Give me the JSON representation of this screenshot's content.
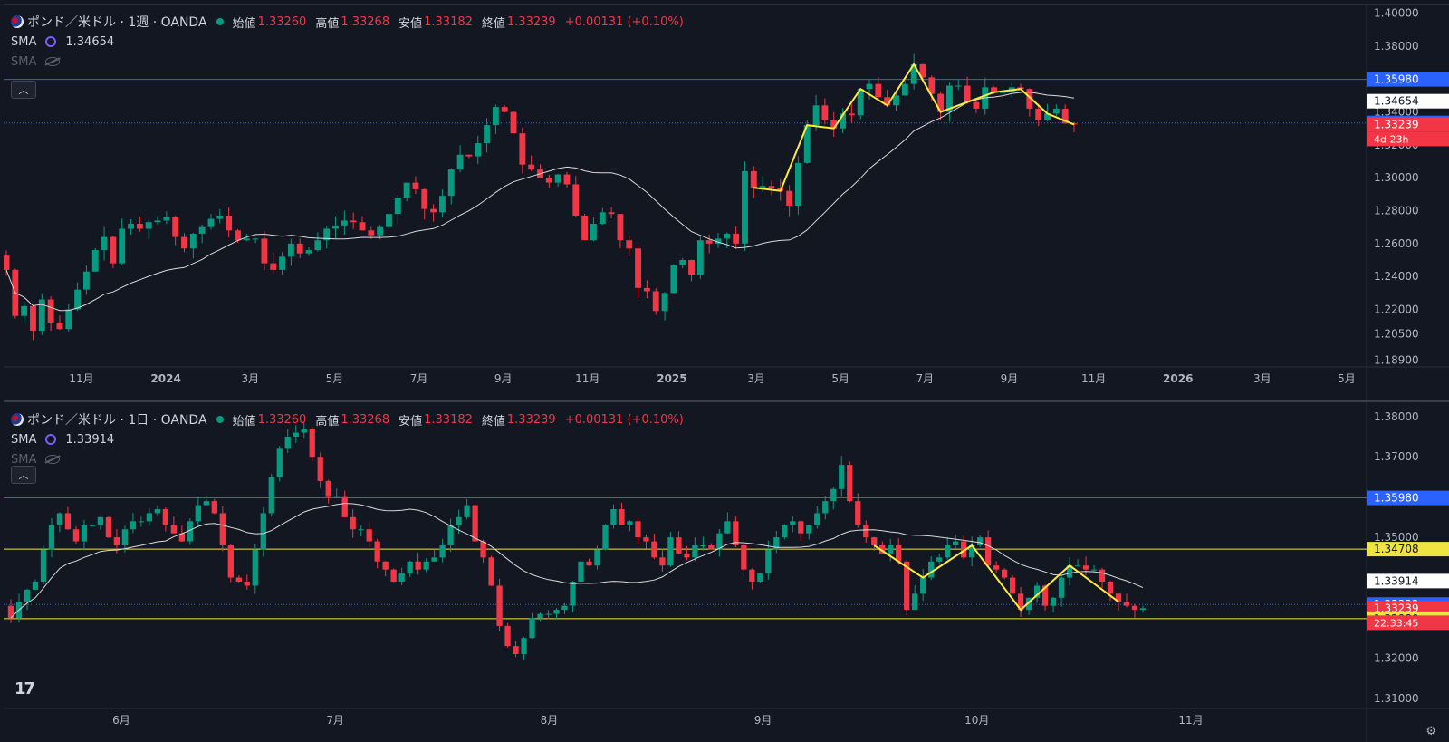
{
  "colors": {
    "up": "#089981",
    "down": "#f23645",
    "sma": "#d9d9d9",
    "zigzag": "#ffeb3b",
    "blue_line": "#2962ff",
    "yellow_line": "#f0e442",
    "bg": "#131722",
    "axis_text": "#b2b5be"
  },
  "top": {
    "title": "ポンド／米ドル · 1週 · OANDA",
    "open_label": "始値",
    "open": "1.33260",
    "high_label": "高値",
    "high": "1.33268",
    "low_label": "安値",
    "low": "1.33182",
    "close_label": "終値",
    "close": "1.33239",
    "change": "+0.00131 (+0.10%)",
    "sma1_label": "SMA",
    "sma1_value": "1.34654",
    "sma2_label": "SMA",
    "collapse_icon": "chevron-up-icon"
  },
  "bottom": {
    "title": "ポンド／米ドル · 1日 · OANDA",
    "open_label": "始値",
    "open": "1.33260",
    "high_label": "高値",
    "high": "1.33268",
    "low_label": "安値",
    "low": "1.33182",
    "close_label": "終値",
    "close": "1.33239",
    "change": "+0.00131 (+0.10%)",
    "sma1_label": "SMA",
    "sma1_value": "1.33914",
    "sma2_label": "SMA",
    "collapse_icon": "chevron-up-icon"
  },
  "chart_data": [
    {
      "type": "candlestick",
      "timeframe": "1週",
      "ylim": [
        1.185,
        1.402
      ],
      "y_ticks": [
        "1.40000",
        "1.38000",
        "1.36000",
        "1.34000",
        "1.32000",
        "1.30000",
        "1.28000",
        "1.26000",
        "1.24000",
        "1.22000",
        "1.20500",
        "1.18900"
      ],
      "x_tick_labels": [
        "11月",
        "2024",
        "3月",
        "5月",
        "7月",
        "9月",
        "11月",
        "2025",
        "3月",
        "5月",
        "7月",
        "9月",
        "11月",
        "2026",
        "3月",
        "5月"
      ],
      "price_tags": [
        {
          "value": "1.35980",
          "price": 1.3598,
          "color": "#2962ff"
        },
        {
          "value": "1.34654",
          "price": 1.34654,
          "color": "#ffffff"
        },
        {
          "value": "1.33332",
          "price": 1.33332,
          "color": "#2962ff"
        },
        {
          "value": "1.33239",
          "price": 1.33239,
          "color": "#f23645"
        }
      ],
      "countdown": "4d 23h",
      "hlines": [
        {
          "price": 1.3598,
          "style": "solid",
          "color": "#2962ff"
        },
        {
          "price": 1.33332,
          "style": "dotted",
          "color": "#2962ff"
        }
      ],
      "closes": [
        1.244,
        1.216,
        1.222,
        1.207,
        1.226,
        1.212,
        1.208,
        1.22,
        1.232,
        1.243,
        1.256,
        1.264,
        1.248,
        1.269,
        1.272,
        1.269,
        1.273,
        1.274,
        1.276,
        1.264,
        1.257,
        1.266,
        1.27,
        1.275,
        1.277,
        1.268,
        1.262,
        1.263,
        1.263,
        1.248,
        1.244,
        1.252,
        1.26,
        1.254,
        1.256,
        1.262,
        1.269,
        1.271,
        1.274,
        1.273,
        1.268,
        1.265,
        1.27,
        1.278,
        1.288,
        1.297,
        1.293,
        1.281,
        1.279,
        1.289,
        1.305,
        1.314,
        1.313,
        1.321,
        1.332,
        1.343,
        1.34,
        1.327,
        1.308,
        1.305,
        1.3,
        1.297,
        1.302,
        1.296,
        1.277,
        1.262,
        1.272,
        1.279,
        1.278,
        1.262,
        1.257,
        1.233,
        1.231,
        1.219,
        1.23,
        1.247,
        1.25,
        1.241,
        1.262,
        1.26,
        1.263,
        1.266,
        1.26,
        1.304,
        1.294,
        1.295,
        1.294,
        1.292,
        1.283,
        1.309,
        1.332,
        1.344,
        1.335,
        1.33,
        1.339,
        1.338,
        1.354,
        1.357,
        1.349,
        1.344,
        1.35,
        1.357,
        1.369,
        1.361,
        1.351,
        1.34,
        1.356,
        1.356,
        1.346,
        1.342,
        1.355,
        1.352,
        1.352,
        1.355,
        1.354,
        1.342,
        1.335,
        1.339,
        1.342,
        1.333,
        1.3324
      ]
    },
    {
      "type": "candlestick",
      "timeframe": "1日",
      "ylim": [
        1.3075,
        1.3822
      ],
      "y_ticks": [
        "1.38000",
        "1.37000",
        "1.35000",
        "1.32000",
        "1.31000"
      ],
      "x_tick_labels": [
        "6月",
        "7月",
        "8月",
        "9月",
        "10月",
        "11月"
      ],
      "price_tags": [
        {
          "value": "1.35980",
          "price": 1.3598,
          "color": "#2962ff"
        },
        {
          "value": "1.34708",
          "price": 1.34708,
          "color": "#f0e442"
        },
        {
          "value": "1.33914",
          "price": 1.33914,
          "color": "#ffffff"
        },
        {
          "value": "1.33332",
          "price": 1.33332,
          "color": "#2962ff"
        },
        {
          "value": "1.33239",
          "price": 1.33239,
          "color": "#f23645"
        },
        {
          "value": "1.32980",
          "price": 1.3298,
          "color": "#f0e442"
        }
      ],
      "countdown": "22:33:45",
      "hlines": [
        {
          "price": 1.3598,
          "style": "solid",
          "color": "#2962ff"
        },
        {
          "price": 1.34708,
          "style": "solid",
          "color": "#f0e442"
        },
        {
          "price": 1.33332,
          "style": "dotted",
          "color": "#2962ff"
        },
        {
          "price": 1.3298,
          "style": "solid",
          "color": "#f0e442"
        }
      ],
      "closes": [
        1.33,
        1.334,
        1.337,
        1.339,
        1.347,
        1.353,
        1.356,
        1.352,
        1.349,
        1.353,
        1.353,
        1.355,
        1.35,
        1.348,
        1.352,
        1.354,
        1.354,
        1.356,
        1.357,
        1.353,
        1.351,
        1.349,
        1.354,
        1.358,
        1.359,
        1.356,
        1.348,
        1.34,
        1.339,
        1.338,
        1.347,
        1.356,
        1.365,
        1.372,
        1.375,
        1.376,
        1.377,
        1.37,
        1.364,
        1.36,
        1.36,
        1.355,
        1.352,
        1.352,
        1.349,
        1.344,
        1.342,
        1.339,
        1.341,
        1.344,
        1.342,
        1.344,
        1.345,
        1.348,
        1.353,
        1.355,
        1.358,
        1.349,
        1.345,
        1.338,
        1.328,
        1.323,
        1.321,
        1.325,
        1.33,
        1.331,
        1.331,
        1.332,
        1.333,
        1.339,
        1.344,
        1.343,
        1.347,
        1.353,
        1.357,
        1.353,
        1.354,
        1.35,
        1.349,
        1.345,
        1.343,
        1.35,
        1.346,
        1.345,
        1.348,
        1.348,
        1.347,
        1.351,
        1.354,
        1.348,
        1.342,
        1.339,
        1.341,
        1.347,
        1.35,
        1.353,
        1.354,
        1.351,
        1.353,
        1.356,
        1.359,
        1.362,
        1.368,
        1.359,
        1.353,
        1.35,
        1.348,
        1.346,
        1.348,
        1.344,
        1.332,
        1.336,
        1.34,
        1.344,
        1.345,
        1.348,
        1.349,
        1.345,
        1.348,
        1.35,
        1.343,
        1.342,
        1.34,
        1.336,
        1.332,
        1.335,
        1.338,
        1.333,
        1.335,
        1.34,
        1.343,
        1.343,
        1.342,
        1.342,
        1.339,
        1.336,
        1.334,
        1.333,
        1.332,
        1.3324
      ]
    }
  ]
}
